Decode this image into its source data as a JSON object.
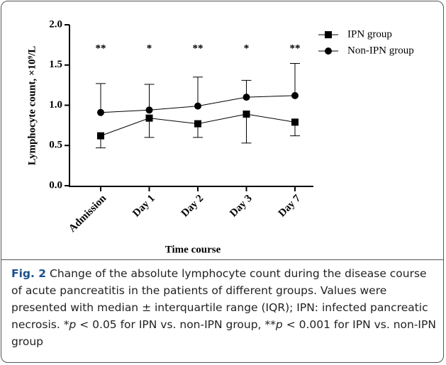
{
  "chart_data": {
    "type": "line",
    "ylabel": "Lymphocyte count, ×10⁹/L",
    "xlabel": "Time course",
    "categories": [
      "Admission",
      "Day 1",
      "Day 2",
      "Day 3",
      "Day 7"
    ],
    "ylim": [
      0,
      2
    ],
    "yticks": [
      {
        "value": 0,
        "label": "0.0"
      },
      {
        "value": 0.5,
        "label": "0.5"
      },
      {
        "value": 1,
        "label": "1.0"
      },
      {
        "value": 1.5,
        "label": "1.5"
      },
      {
        "value": 2,
        "label": "2.0"
      }
    ],
    "series": [
      {
        "name": "IPN group",
        "color": "#000000",
        "marker": "square",
        "values": [
          0.62,
          0.84,
          0.77,
          0.89,
          0.79
        ],
        "error_low": [
          0.47,
          0.6,
          0.6,
          0.53,
          0.62
        ]
      },
      {
        "name": "Non-IPN group",
        "color": "#000000",
        "marker": "circle",
        "values": [
          0.91,
          0.94,
          0.99,
          1.1,
          1.12
        ],
        "error_high": [
          1.27,
          1.26,
          1.35,
          1.31,
          1.52
        ]
      }
    ],
    "annotations": [
      "**",
      "*",
      "**",
      "*",
      "**"
    ],
    "annotation_y": 1.7,
    "legend": "top-right"
  },
  "caption": {
    "label": "Fig. 2",
    "parts": [
      " Change of the absolute lymphocyte count during the disease course of acute pancreatitis in the patients of different groups. Values were presented with median ± interquartile range (IQR); IPN: infected pancreatic necrosis. *",
      "p",
      " < 0.05 for IPN vs. non-IPN group, **",
      "p",
      " < 0.001 for IPN vs. non-IPN group"
    ]
  }
}
